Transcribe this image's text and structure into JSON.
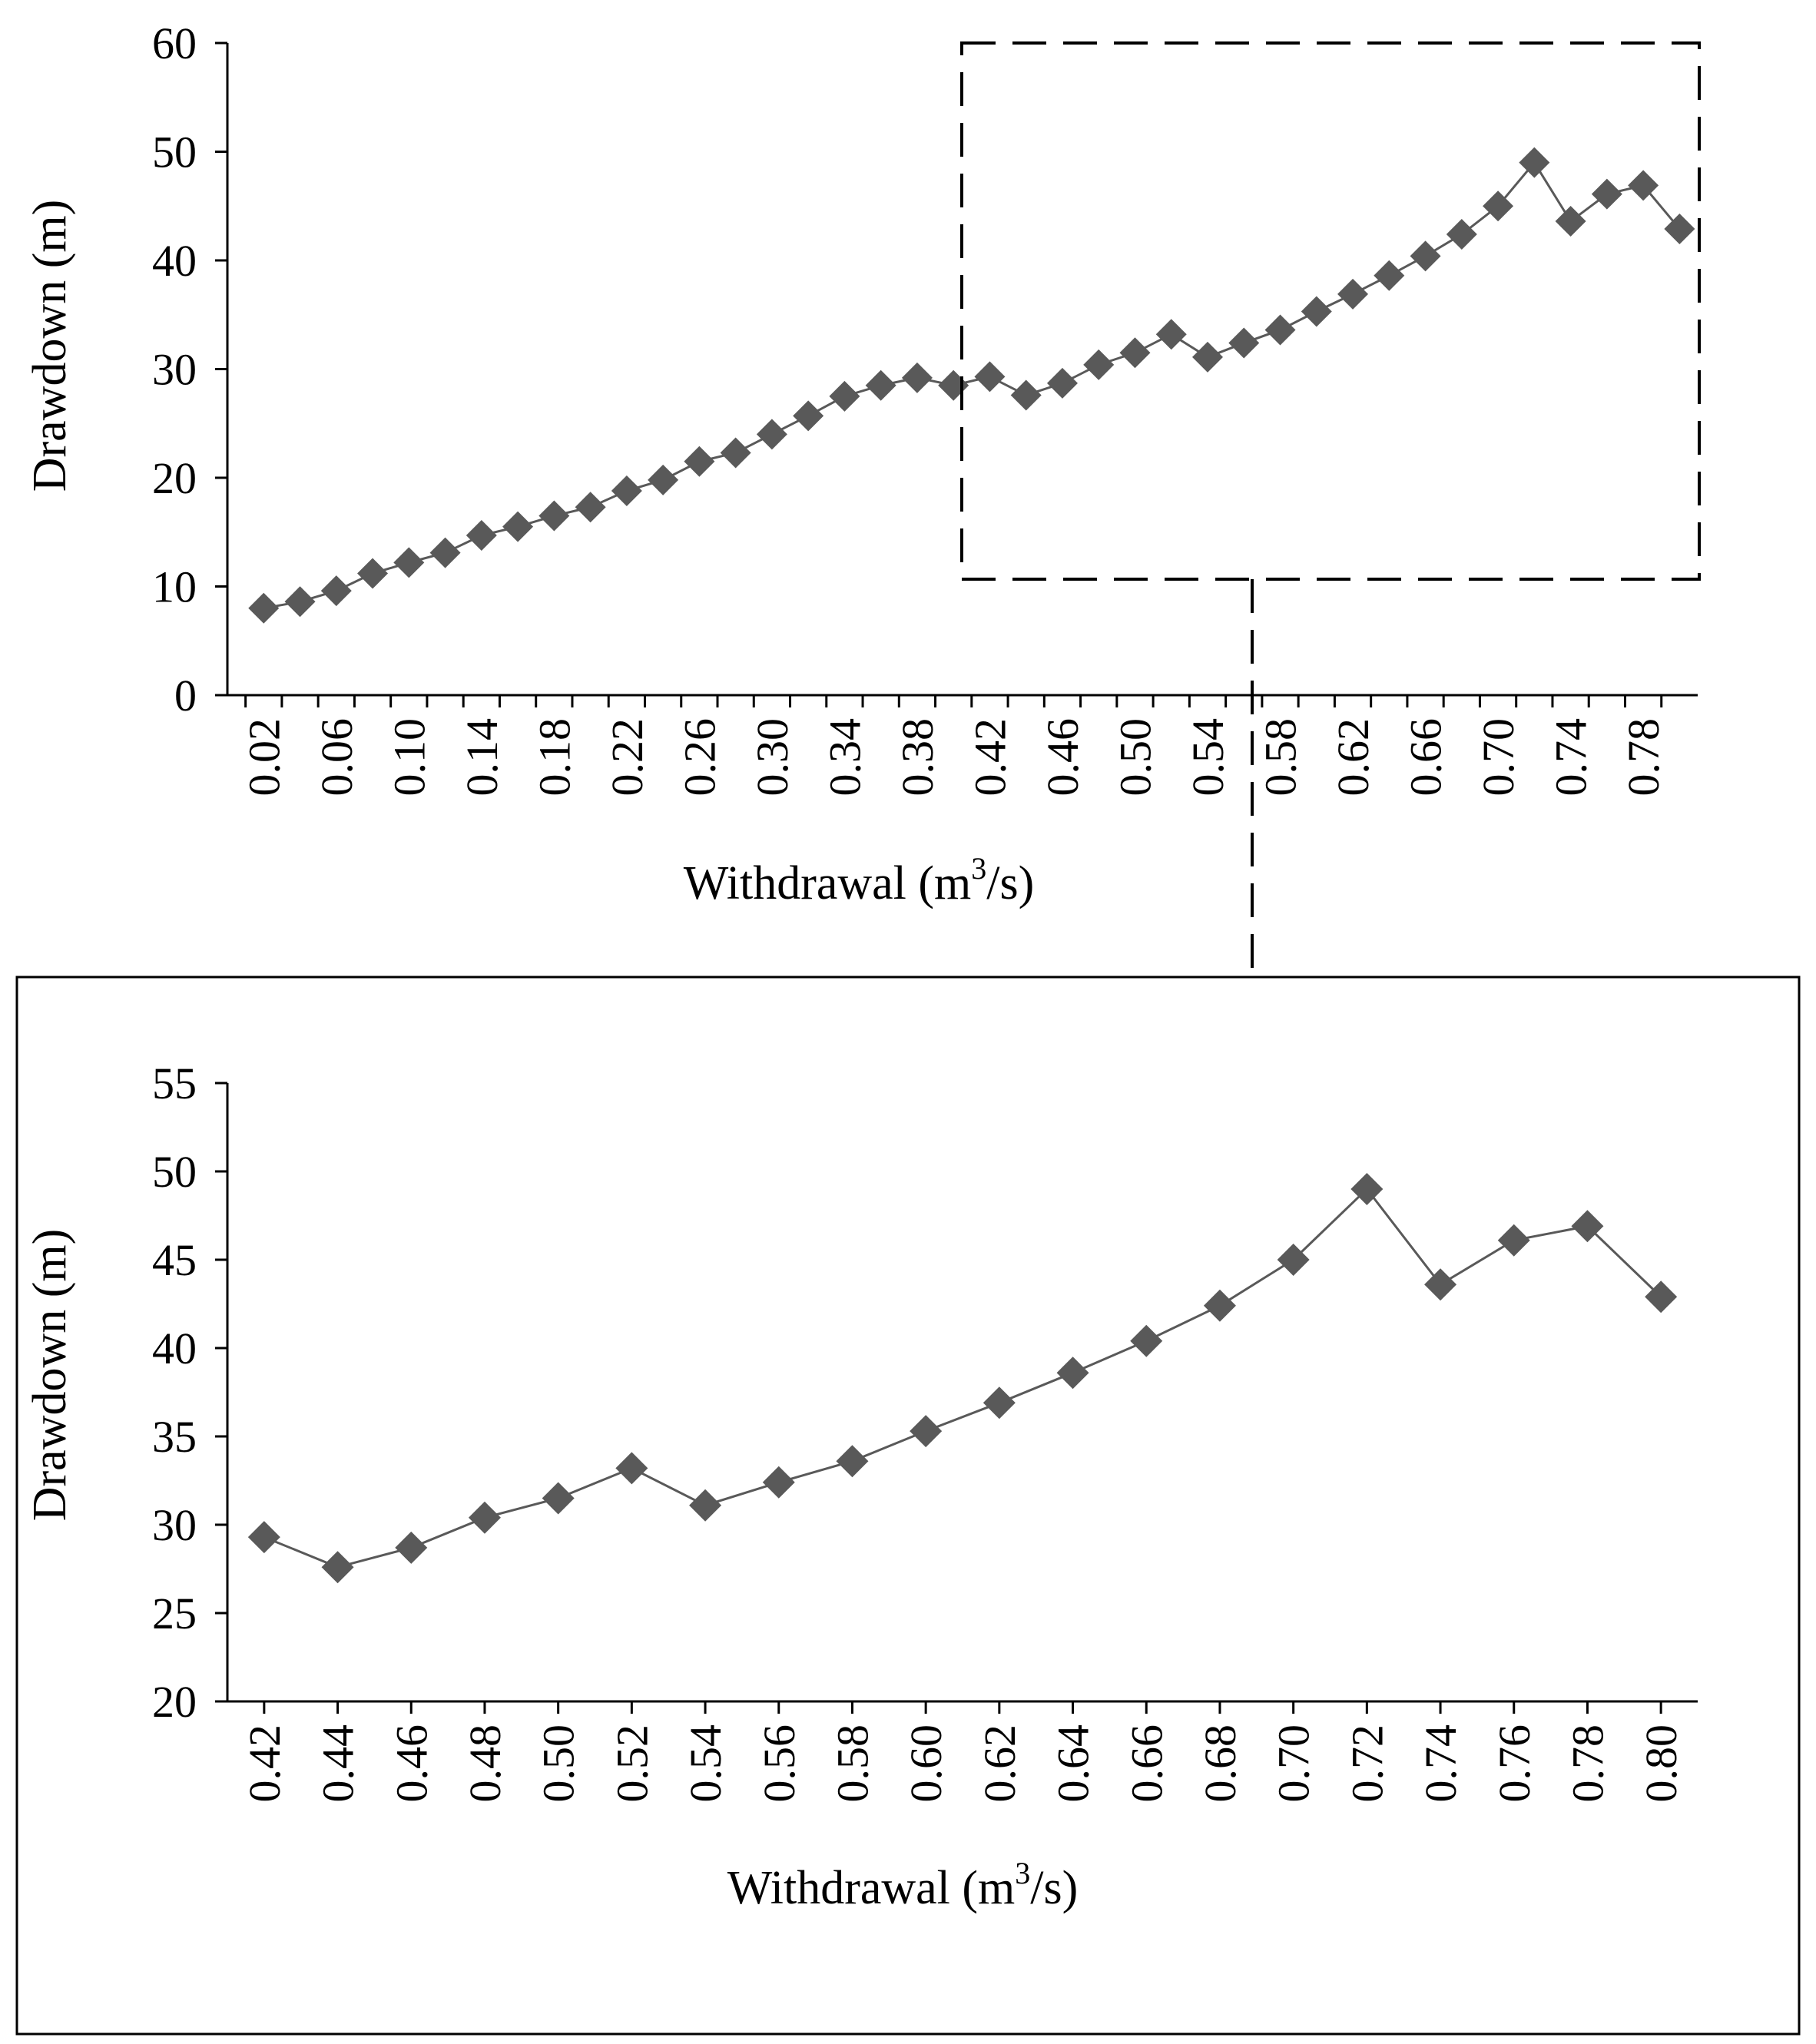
{
  "colors": {
    "marker": "#595959",
    "line": "#595959",
    "axis": "#000000",
    "background": "#ffffff"
  },
  "chart_data": [
    {
      "type": "line",
      "id": "full",
      "xlabel": "Withdrawal (m",
      "xlabel_sup": "3",
      "xlabel_tail": "/s)",
      "ylabel": "Drawdown (m)",
      "ylim": [
        0,
        60
      ],
      "yticks": [
        0,
        10,
        20,
        30,
        40,
        50,
        60
      ],
      "xticks": [
        "0.02",
        "0.06",
        "0.10",
        "0.14",
        "0.18",
        "0.22",
        "0.26",
        "0.30",
        "0.34",
        "0.38",
        "0.42",
        "0.46",
        "0.50",
        "0.54",
        "0.58",
        "0.62",
        "0.66",
        "0.70",
        "0.74",
        "0.78"
      ],
      "x": [
        0.02,
        0.04,
        0.06,
        0.08,
        0.1,
        0.12,
        0.14,
        0.16,
        0.18,
        0.2,
        0.22,
        0.24,
        0.26,
        0.28,
        0.3,
        0.32,
        0.34,
        0.36,
        0.38,
        0.4,
        0.42,
        0.44,
        0.46,
        0.48,
        0.5,
        0.52,
        0.54,
        0.56,
        0.58,
        0.6,
        0.62,
        0.64,
        0.66,
        0.68,
        0.7,
        0.72,
        0.74,
        0.76,
        0.78,
        0.8
      ],
      "y": [
        8.0,
        8.6,
        9.6,
        11.2,
        12.2,
        13.1,
        14.7,
        15.5,
        16.5,
        17.3,
        18.8,
        19.8,
        21.5,
        22.3,
        24.0,
        25.7,
        27.5,
        28.5,
        29.2,
        28.5,
        29.3,
        27.6,
        28.7,
        30.4,
        31.5,
        33.2,
        31.1,
        32.4,
        33.6,
        35.3,
        36.9,
        38.6,
        40.4,
        42.4,
        45.0,
        49.0,
        43.6,
        46.1,
        46.9,
        42.9
      ]
    },
    {
      "type": "line",
      "id": "zoom",
      "xlabel": "Withdrawal (m",
      "xlabel_sup": "3",
      "xlabel_tail": "/s)",
      "ylabel": "Drawdown (m)",
      "ylim": [
        20,
        55
      ],
      "yticks": [
        20,
        25,
        30,
        35,
        40,
        45,
        50,
        55
      ],
      "xticks": [
        "0.42",
        "0.44",
        "0.46",
        "0.48",
        "0.50",
        "0.52",
        "0.54",
        "0.56",
        "0.58",
        "0.60",
        "0.62",
        "0.64",
        "0.66",
        "0.68",
        "0.70",
        "0.72",
        "0.74",
        "0.76",
        "0.78",
        "0.80"
      ],
      "x": [
        0.42,
        0.44,
        0.46,
        0.48,
        0.5,
        0.52,
        0.54,
        0.56,
        0.58,
        0.6,
        0.62,
        0.64,
        0.66,
        0.68,
        0.7,
        0.72,
        0.74,
        0.76,
        0.78,
        0.8
      ],
      "y": [
        29.3,
        27.6,
        28.7,
        30.4,
        31.5,
        33.2,
        31.1,
        32.4,
        33.6,
        35.3,
        36.9,
        38.6,
        40.4,
        42.4,
        45.0,
        49.0,
        43.6,
        46.1,
        46.9,
        42.9
      ]
    }
  ]
}
